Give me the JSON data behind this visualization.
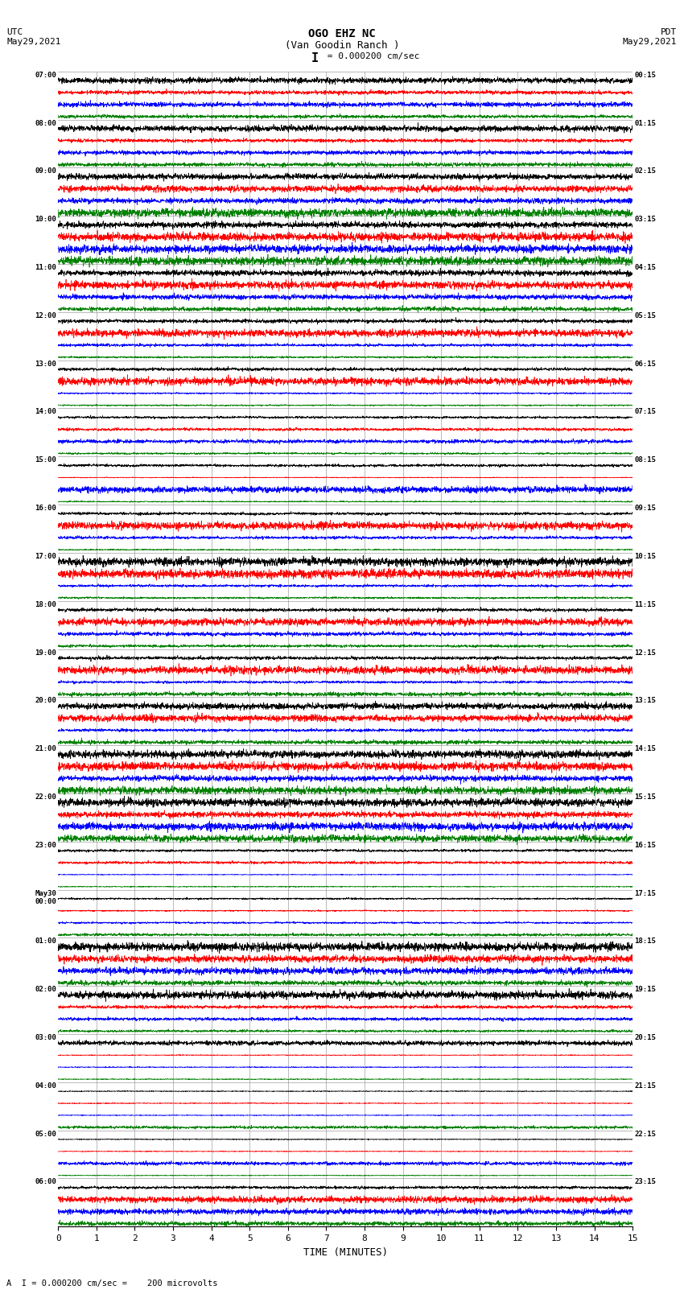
{
  "title_line1": "OGO EHZ NC",
  "title_line2": "(Van Goodin Ranch )",
  "scale_label": "I = 0.000200 cm/sec",
  "utc_label": "UTC\nMay29,2021",
  "pdt_label": "PDT\nMay29,2021",
  "footer_label": "A  I = 0.000200 cm/sec =    200 microvolts",
  "xlabel": "TIME (MINUTES)",
  "xticks": [
    0,
    1,
    2,
    3,
    4,
    5,
    6,
    7,
    8,
    9,
    10,
    11,
    12,
    13,
    14,
    15
  ],
  "left_times": [
    "07:00",
    "08:00",
    "09:00",
    "10:00",
    "11:00",
    "12:00",
    "13:00",
    "14:00",
    "15:00",
    "16:00",
    "17:00",
    "18:00",
    "19:00",
    "20:00",
    "21:00",
    "22:00",
    "23:00",
    "May30\n00:00",
    "01:00",
    "02:00",
    "03:00",
    "04:00",
    "05:00",
    "06:00"
  ],
  "right_times": [
    "00:15",
    "01:15",
    "02:15",
    "03:15",
    "04:15",
    "05:15",
    "06:15",
    "07:15",
    "08:15",
    "09:15",
    "10:15",
    "11:15",
    "12:15",
    "13:15",
    "14:15",
    "15:15",
    "16:15",
    "17:15",
    "18:15",
    "19:15",
    "20:15",
    "21:15",
    "22:15",
    "23:15"
  ],
  "n_rows": 24,
  "n_points": 3000,
  "bg_color": "#ffffff",
  "trace_colors": [
    "#000000",
    "#ff0000",
    "#0000ff",
    "#008000"
  ],
  "row_configs": [
    {
      "amps": [
        0.6,
        0.5,
        0.6,
        0.4
      ],
      "noises": [
        0.3,
        0.25,
        0.3,
        0.2
      ]
    },
    {
      "amps": [
        0.8,
        0.4,
        0.5,
        0.5
      ],
      "noises": [
        0.5,
        0.3,
        0.35,
        0.35
      ]
    },
    {
      "amps": [
        0.7,
        0.7,
        0.6,
        0.9
      ],
      "noises": [
        0.45,
        0.5,
        0.4,
        0.7
      ]
    },
    {
      "amps": [
        0.7,
        0.9,
        0.9,
        0.9
      ],
      "noises": [
        0.5,
        0.7,
        0.7,
        0.7
      ]
    },
    {
      "amps": [
        0.7,
        0.9,
        0.6,
        0.5
      ],
      "noises": [
        0.5,
        0.7,
        0.4,
        0.3
      ]
    },
    {
      "amps": [
        0.5,
        0.9,
        0.3,
        0.2
      ],
      "noises": [
        0.35,
        0.7,
        0.2,
        0.1
      ]
    },
    {
      "amps": [
        0.4,
        0.9,
        0.2,
        0.15
      ],
      "noises": [
        0.25,
        0.7,
        0.1,
        0.07
      ]
    },
    {
      "amps": [
        0.3,
        0.3,
        0.4,
        0.2
      ],
      "noises": [
        0.1,
        0.1,
        0.15,
        0.07
      ]
    },
    {
      "amps": [
        0.3,
        0.1,
        0.8,
        0.15
      ],
      "noises": [
        0.1,
        0.05,
        0.6,
        0.07
      ]
    },
    {
      "amps": [
        0.3,
        0.9,
        0.3,
        0.15
      ],
      "noises": [
        0.1,
        0.6,
        0.1,
        0.07
      ]
    },
    {
      "amps": [
        0.9,
        0.9,
        0.3,
        0.2
      ],
      "noises": [
        0.8,
        0.7,
        0.1,
        0.07
      ]
    },
    {
      "amps": [
        0.4,
        0.8,
        0.5,
        0.3
      ],
      "noises": [
        0.2,
        0.6,
        0.3,
        0.15
      ]
    },
    {
      "amps": [
        0.5,
        0.9,
        0.3,
        0.5
      ],
      "noises": [
        0.3,
        0.7,
        0.15,
        0.3
      ]
    },
    {
      "amps": [
        0.7,
        0.8,
        0.3,
        0.6
      ],
      "noises": [
        0.5,
        0.6,
        0.15,
        0.4
      ]
    },
    {
      "amps": [
        0.8,
        0.9,
        0.8,
        0.8
      ],
      "noises": [
        0.6,
        0.7,
        0.6,
        0.6
      ]
    },
    {
      "amps": [
        0.9,
        0.7,
        0.9,
        0.9
      ],
      "noises": [
        0.8,
        0.5,
        0.7,
        0.8
      ]
    },
    {
      "amps": [
        0.25,
        0.3,
        0.1,
        0.1
      ],
      "noises": [
        0.1,
        0.15,
        0.05,
        0.05
      ]
    },
    {
      "amps": [
        0.2,
        0.15,
        0.2,
        0.3
      ],
      "noises": [
        0.05,
        0.07,
        0.08,
        0.15
      ]
    },
    {
      "amps": [
        0.9,
        0.9,
        0.7,
        0.6
      ],
      "noises": [
        0.8,
        0.8,
        0.5,
        0.4
      ]
    },
    {
      "amps": [
        0.9,
        0.4,
        0.4,
        0.3
      ],
      "noises": [
        0.7,
        0.25,
        0.25,
        0.15
      ]
    },
    {
      "amps": [
        0.5,
        0.1,
        0.1,
        0.1
      ],
      "noises": [
        0.35,
        0.05,
        0.05,
        0.05
      ]
    },
    {
      "amps": [
        0.1,
        0.1,
        0.1,
        0.3
      ],
      "noises": [
        0.05,
        0.05,
        0.05,
        0.2
      ]
    },
    {
      "amps": [
        0.1,
        0.1,
        0.4,
        0.1
      ],
      "noises": [
        0.05,
        0.05,
        0.25,
        0.05
      ]
    },
    {
      "amps": [
        0.3,
        0.7,
        0.6,
        0.5
      ],
      "noises": [
        0.15,
        0.5,
        0.4,
        0.3
      ]
    }
  ]
}
